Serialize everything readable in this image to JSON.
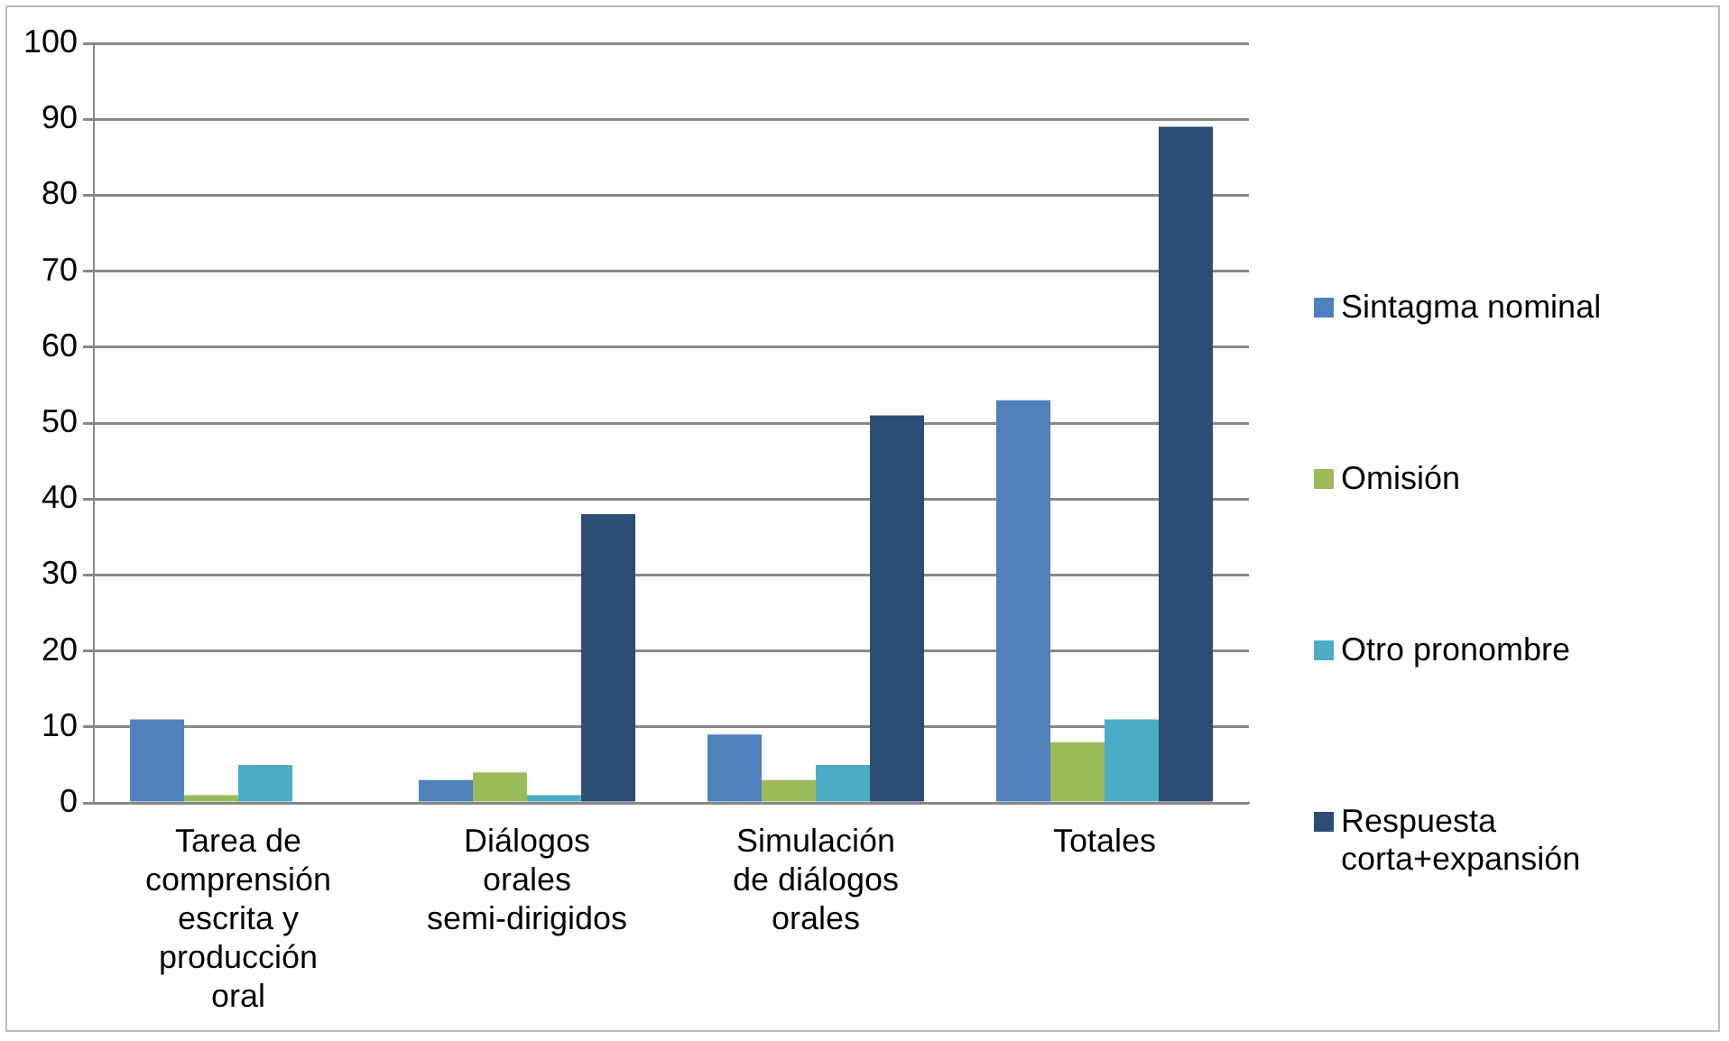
{
  "chart_data": {
    "type": "bar",
    "categories": [
      "Tarea de comprensión escrita y producción oral",
      "Diálogos orales semi-dirigidos",
      "Simulación de diálogos orales",
      "Totales"
    ],
    "series": [
      {
        "name": "Sintagma nominal",
        "color": "#4f81bd",
        "values": [
          11,
          3,
          9,
          53
        ]
      },
      {
        "name": "Omisión",
        "color": "#9bbb59",
        "values": [
          1,
          4,
          3,
          8
        ]
      },
      {
        "name": "Otro pronombre",
        "color": "#4bacc6",
        "values": [
          5,
          1,
          5,
          11
        ]
      },
      {
        "name": "Respuesta corta+expansión",
        "color": "#2c4d75",
        "values": [
          0,
          38,
          51,
          89
        ]
      }
    ],
    "ylim": [
      0,
      100
    ],
    "yticks": [
      0,
      10,
      20,
      30,
      40,
      50,
      60,
      70,
      80,
      90,
      100
    ],
    "grid": "y",
    "legend": "right"
  }
}
